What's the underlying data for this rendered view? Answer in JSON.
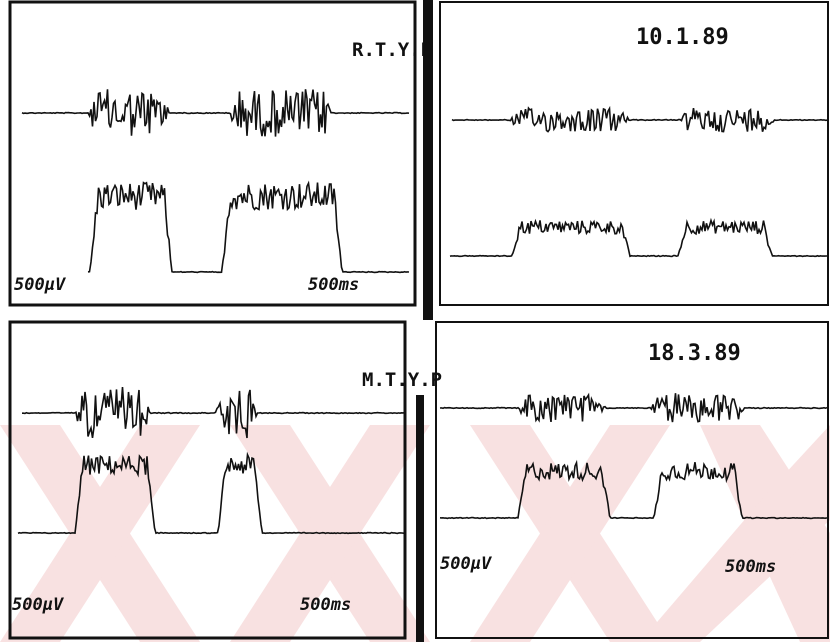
{
  "top": {
    "subject": "R.T.Y.P",
    "date": "10.1.89",
    "left_scale": {
      "amplitude": "500µV",
      "time": "500ms"
    }
  },
  "bottom": {
    "subject": "M.T.Y.P",
    "date": "18.3.89",
    "left_scale": {
      "amplitude": "500µV",
      "time": "500ms"
    },
    "right_scale": {
      "amplitude": "500µV",
      "time": "500ms"
    }
  }
}
